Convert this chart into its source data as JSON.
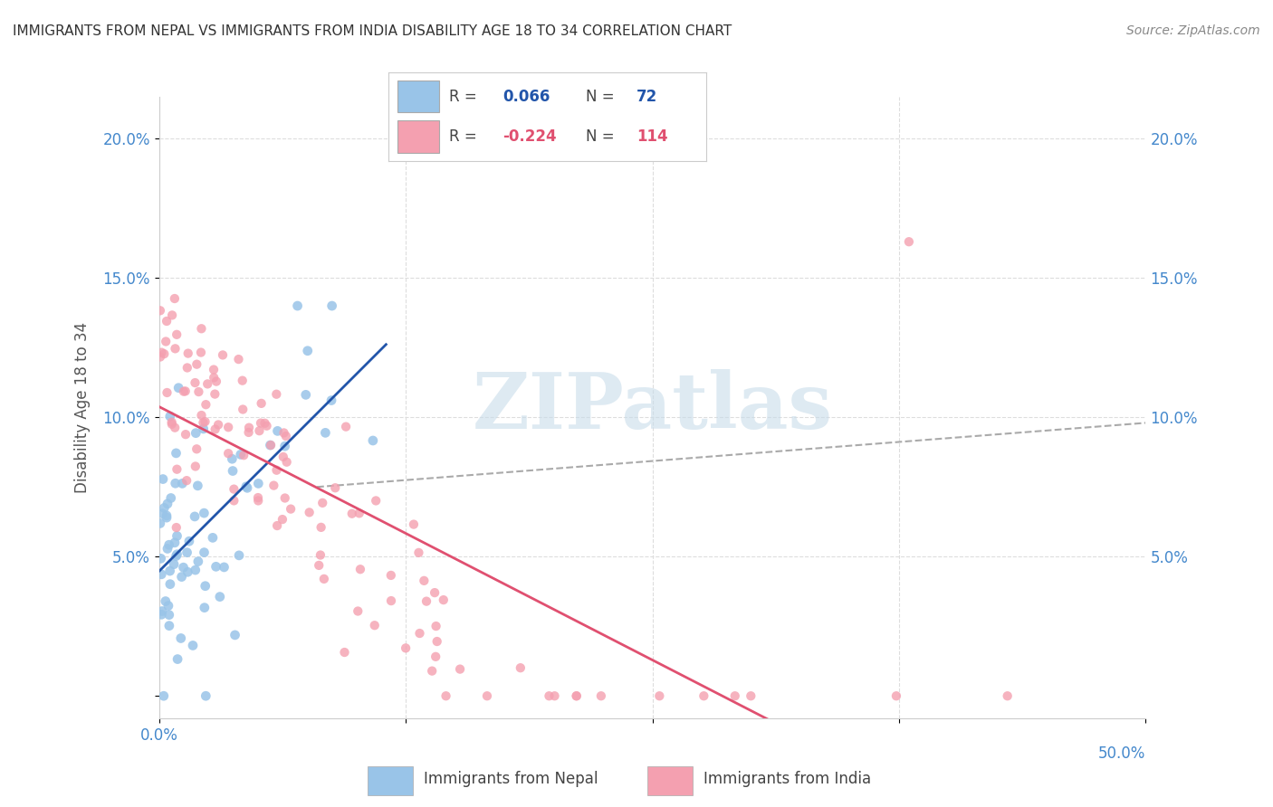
{
  "title": "IMMIGRANTS FROM NEPAL VS IMMIGRANTS FROM INDIA DISABILITY AGE 18 TO 34 CORRELATION CHART",
  "source": "Source: ZipAtlas.com",
  "ylabel": "Disability Age 18 to 34",
  "yticks": [
    0.0,
    0.05,
    0.1,
    0.15,
    0.2
  ],
  "ytick_labels": [
    "",
    "5.0%",
    "10.0%",
    "15.0%",
    "20.0%"
  ],
  "xlim": [
    0.0,
    0.5
  ],
  "ylim": [
    -0.008,
    0.215
  ],
  "nepal_R": 0.066,
  "nepal_N": 72,
  "india_R": -0.224,
  "india_N": 114,
  "nepal_color": "#99c4e8",
  "india_color": "#f4a0b0",
  "nepal_trend_color": "#2255aa",
  "india_trend_color": "#e05070",
  "dashed_line_color": "#aaaaaa",
  "watermark_text": "ZIPatlas",
  "watermark_color": "#c8dcea",
  "nepal_seed": 42,
  "india_seed": 99,
  "background_color": "#ffffff",
  "grid_color": "#dddddd",
  "title_color": "#333333",
  "axis_color": "#4488cc",
  "legend_label_nepal": "Immigrants from Nepal",
  "legend_label_india": "Immigrants from India"
}
